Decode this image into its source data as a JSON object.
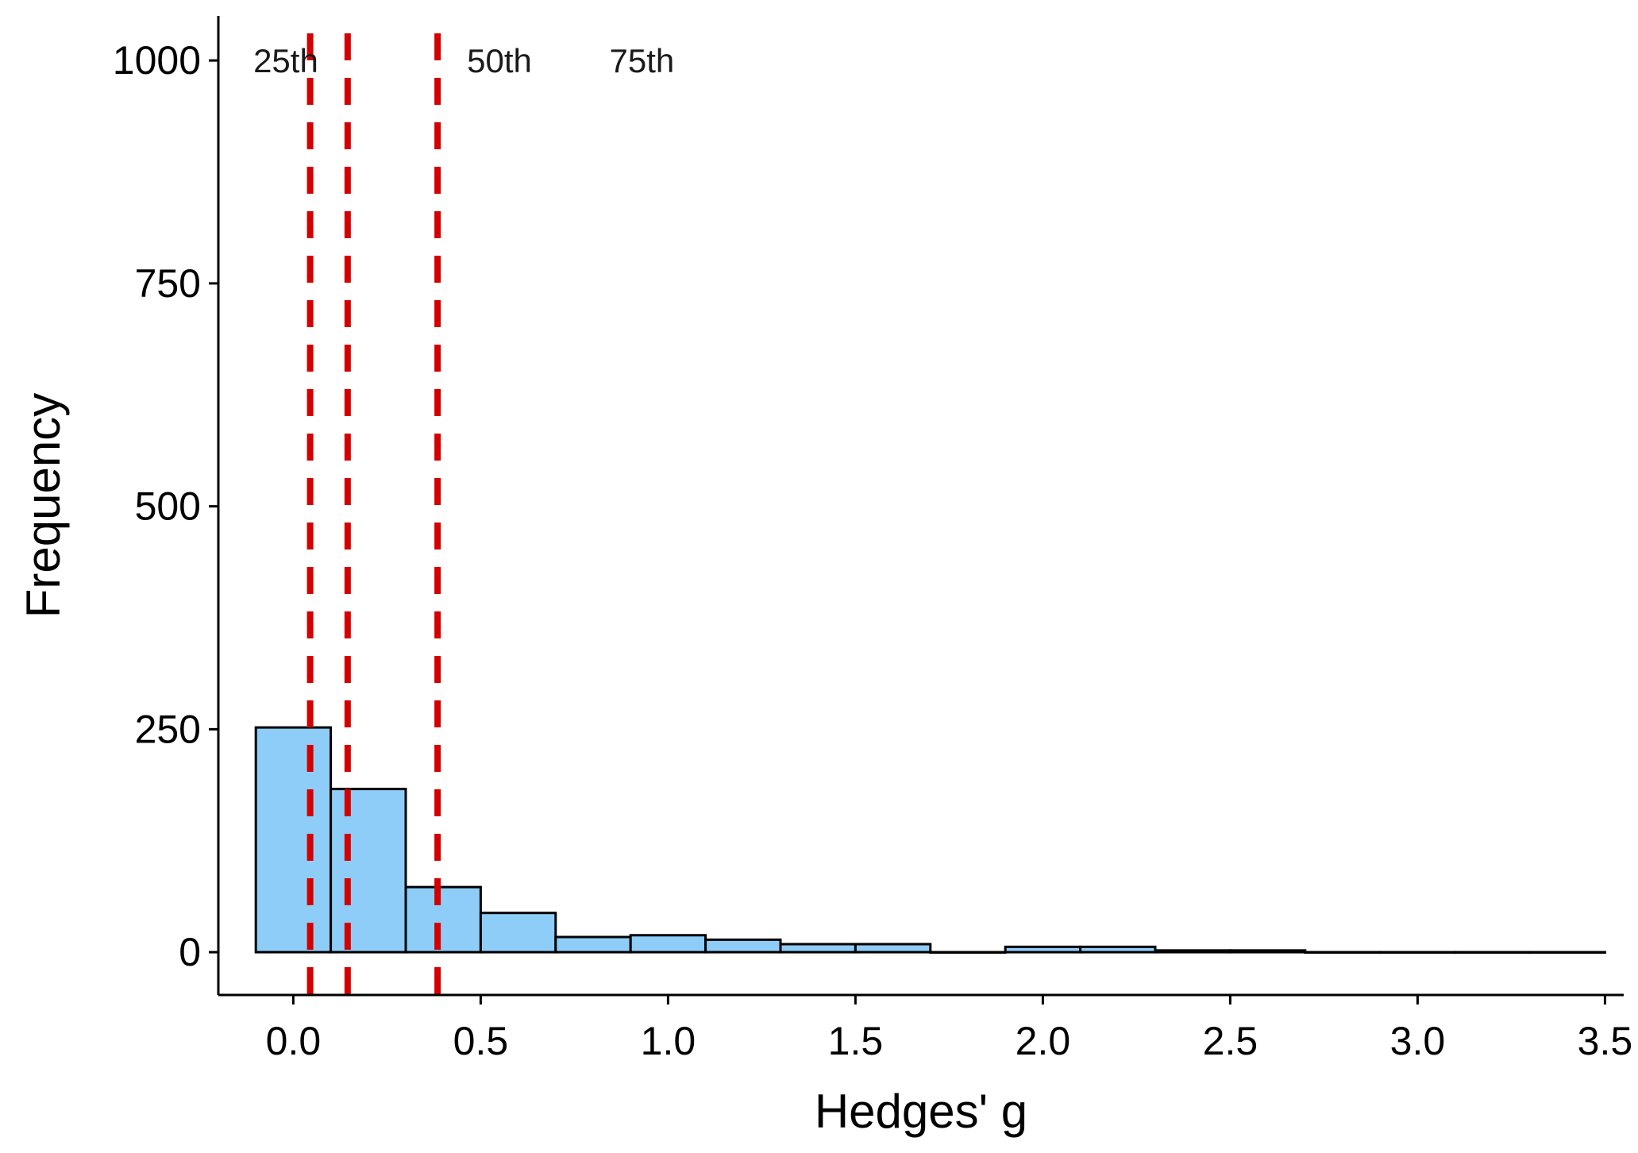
{
  "chart_data": {
    "type": "bar",
    "title": "",
    "xlabel": "Hedges' g",
    "ylabel": "Frequency",
    "xlim": [
      -0.2,
      3.55
    ],
    "ylim": [
      -48,
      1050
    ],
    "x_ticks": [
      {
        "value": 0.0,
        "label": "0.0"
      },
      {
        "value": 0.5,
        "label": "0.5"
      },
      {
        "value": 1.0,
        "label": "1.0"
      },
      {
        "value": 1.5,
        "label": "1.5"
      },
      {
        "value": 2.0,
        "label": "2.0"
      },
      {
        "value": 2.5,
        "label": "2.5"
      },
      {
        "value": 3.0,
        "label": "3.0"
      },
      {
        "value": 3.5,
        "label": "3.5"
      }
    ],
    "y_ticks": [
      {
        "value": 0,
        "label": "0"
      },
      {
        "value": 250,
        "label": "250"
      },
      {
        "value": 500,
        "label": "500"
      },
      {
        "value": 750,
        "label": "750"
      },
      {
        "value": 1000,
        "label": "1000"
      }
    ],
    "bins": [
      {
        "start": -0.1,
        "end": 0.1,
        "count": 252
      },
      {
        "start": 0.1,
        "end": 0.3,
        "count": 183
      },
      {
        "start": 0.3,
        "end": 0.5,
        "count": 73
      },
      {
        "start": 0.5,
        "end": 0.7,
        "count": 44
      },
      {
        "start": 0.7,
        "end": 0.9,
        "count": 17
      },
      {
        "start": 0.9,
        "end": 1.1,
        "count": 19
      },
      {
        "start": 1.1,
        "end": 1.3,
        "count": 14
      },
      {
        "start": 1.3,
        "end": 1.5,
        "count": 9
      },
      {
        "start": 1.5,
        "end": 1.7,
        "count": 9
      },
      {
        "start": 1.7,
        "end": 1.9,
        "count": 0
      },
      {
        "start": 1.9,
        "end": 2.1,
        "count": 6
      },
      {
        "start": 2.1,
        "end": 2.3,
        "count": 6
      },
      {
        "start": 2.3,
        "end": 2.5,
        "count": 2
      },
      {
        "start": 2.5,
        "end": 2.7,
        "count": 2
      },
      {
        "start": 2.7,
        "end": 2.9,
        "count": 0
      },
      {
        "start": 2.9,
        "end": 3.1,
        "count": 0
      },
      {
        "start": 3.1,
        "end": 3.3,
        "count": 0
      },
      {
        "start": 3.3,
        "end": 3.5,
        "count": 0
      }
    ],
    "percentile_lines": [
      {
        "value": 0.045
      },
      {
        "value": 0.145
      },
      {
        "value": 0.385
      }
    ],
    "percentile_labels": [
      {
        "text": "25th",
        "x": -0.02,
        "y": 1000
      },
      {
        "text": "50th",
        "x": 0.55,
        "y": 1000
      },
      {
        "text": "75th",
        "x": 0.93,
        "y": 1000
      }
    ],
    "colors": {
      "bar_fill": "#8ecdf8",
      "bar_stroke": "#000000",
      "percentile_line": "#d40000"
    }
  }
}
